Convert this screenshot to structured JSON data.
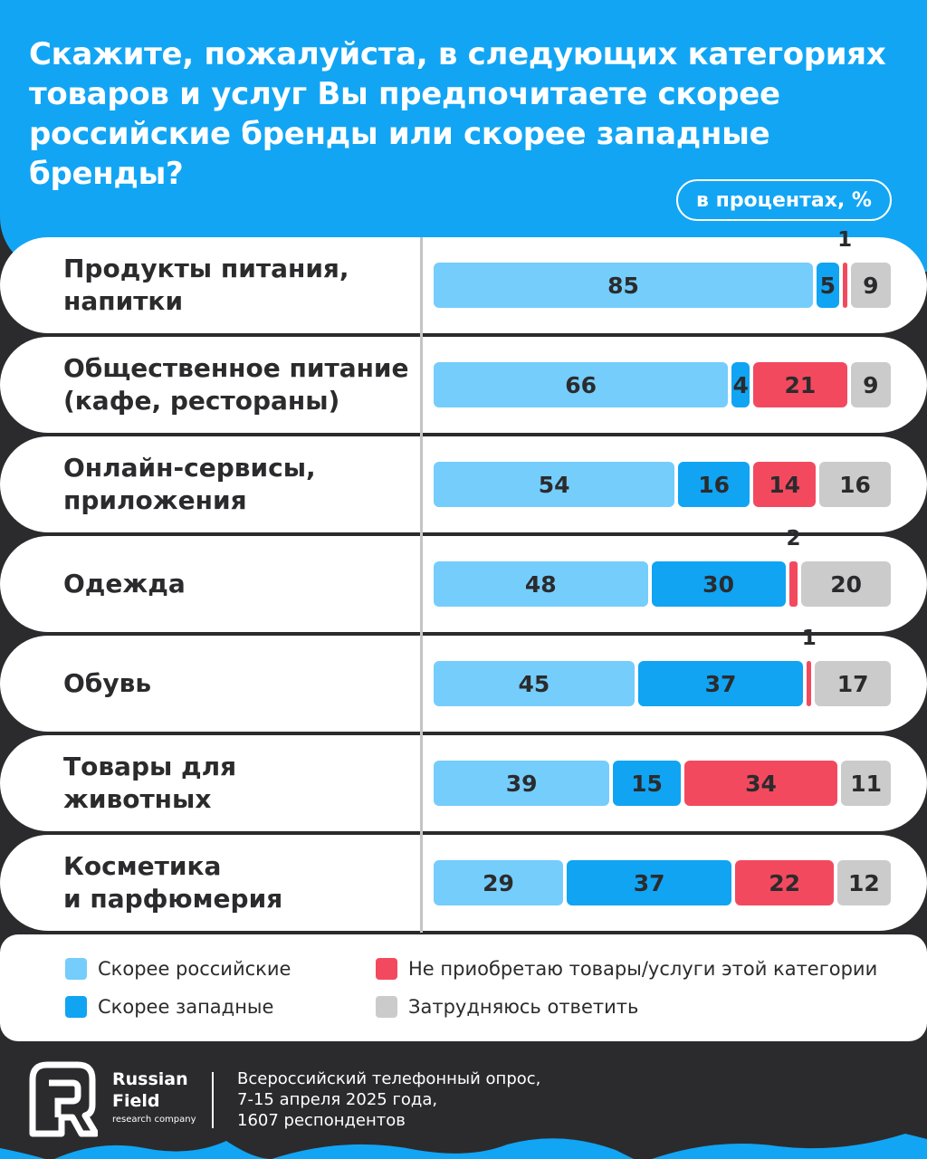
{
  "header": {
    "title": "Скажите, пожалуйста, в следующих категориях товаров и услуг Вы предпочитаете скорее российские бренды или скорее западные бренды?",
    "unit": "в процентах, %"
  },
  "colors": {
    "header_bg": "#12a5f4",
    "russian": "#75cdfb",
    "western": "#10a4f3",
    "not_buy": "#f3495f",
    "hard_to_say": "#cbcbcb",
    "background": "#2b2b2d"
  },
  "chart_data": {
    "type": "bar",
    "orientation": "horizontal-stacked",
    "categories": [
      "Продукты питания,\nнапитки",
      "Общественное питание\n(кафе, рестораны)",
      "Онлайн-сервисы,\nприложения",
      "Одежда",
      "Обувь",
      "Товары для\nживотных",
      "Косметика\nи парфюмерия"
    ],
    "series": [
      {
        "name": "Скорее российские",
        "values": [
          85,
          66,
          54,
          48,
          45,
          39,
          29
        ]
      },
      {
        "name": "Скорее западные",
        "values": [
          5,
          4,
          16,
          30,
          37,
          15,
          37
        ]
      },
      {
        "name": "Не приобретаю товары/услуги этой категории",
        "values": [
          1,
          21,
          14,
          2,
          1,
          34,
          22
        ]
      },
      {
        "name": "Затрудняюсь ответить",
        "values": [
          9,
          9,
          16,
          20,
          17,
          11,
          12
        ]
      }
    ],
    "legend_position": "bottom"
  },
  "footer": {
    "brand_name": "Russian\nField",
    "brand_sub": "research company",
    "source": "Всероссийский телефонный опрос,\n7-15 апреля 2025 года,\n1607 респондентов"
  }
}
